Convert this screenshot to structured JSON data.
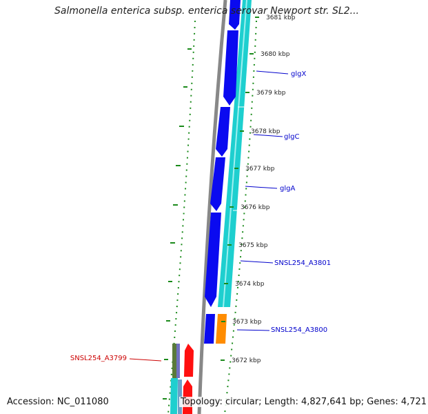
{
  "title": "Salmonella enterica subsp. enterica serovar Newport str. SL2...",
  "accession": "Accession: NC_011080",
  "topology": "Topology: circular; Length: 4,827,641 bp; Genes: 4,721",
  "kbp_ticks": [
    "3681 kbp",
    "3680 kbp",
    "3679 kbp",
    "3678 kbp",
    "3677 kbp",
    "3676 kbp",
    "3675 kbp",
    "3674 kbp",
    "3673 kbp",
    "3672 kbp"
  ],
  "gene_labels": [
    {
      "name": "glgX",
      "color": "#0000cc"
    },
    {
      "name": "glgC",
      "color": "#0000cc"
    },
    {
      "name": "glgA",
      "color": "#0000cc"
    },
    {
      "name": "SNSL254_A3801",
      "color": "#0000cc"
    },
    {
      "name": "SNSL254_A3800",
      "color": "#0000cc"
    },
    {
      "name": "SNSL254_A3799",
      "color": "#cc0000"
    }
  ],
  "colors": {
    "forward_cds": "#0a0af0",
    "reverse_cds": "#ff1010",
    "orange_gene": "#ff8c00",
    "cyan_track": "#1ecfcf",
    "backbone": "#888888",
    "gc_dots": "#1a8a1a"
  }
}
